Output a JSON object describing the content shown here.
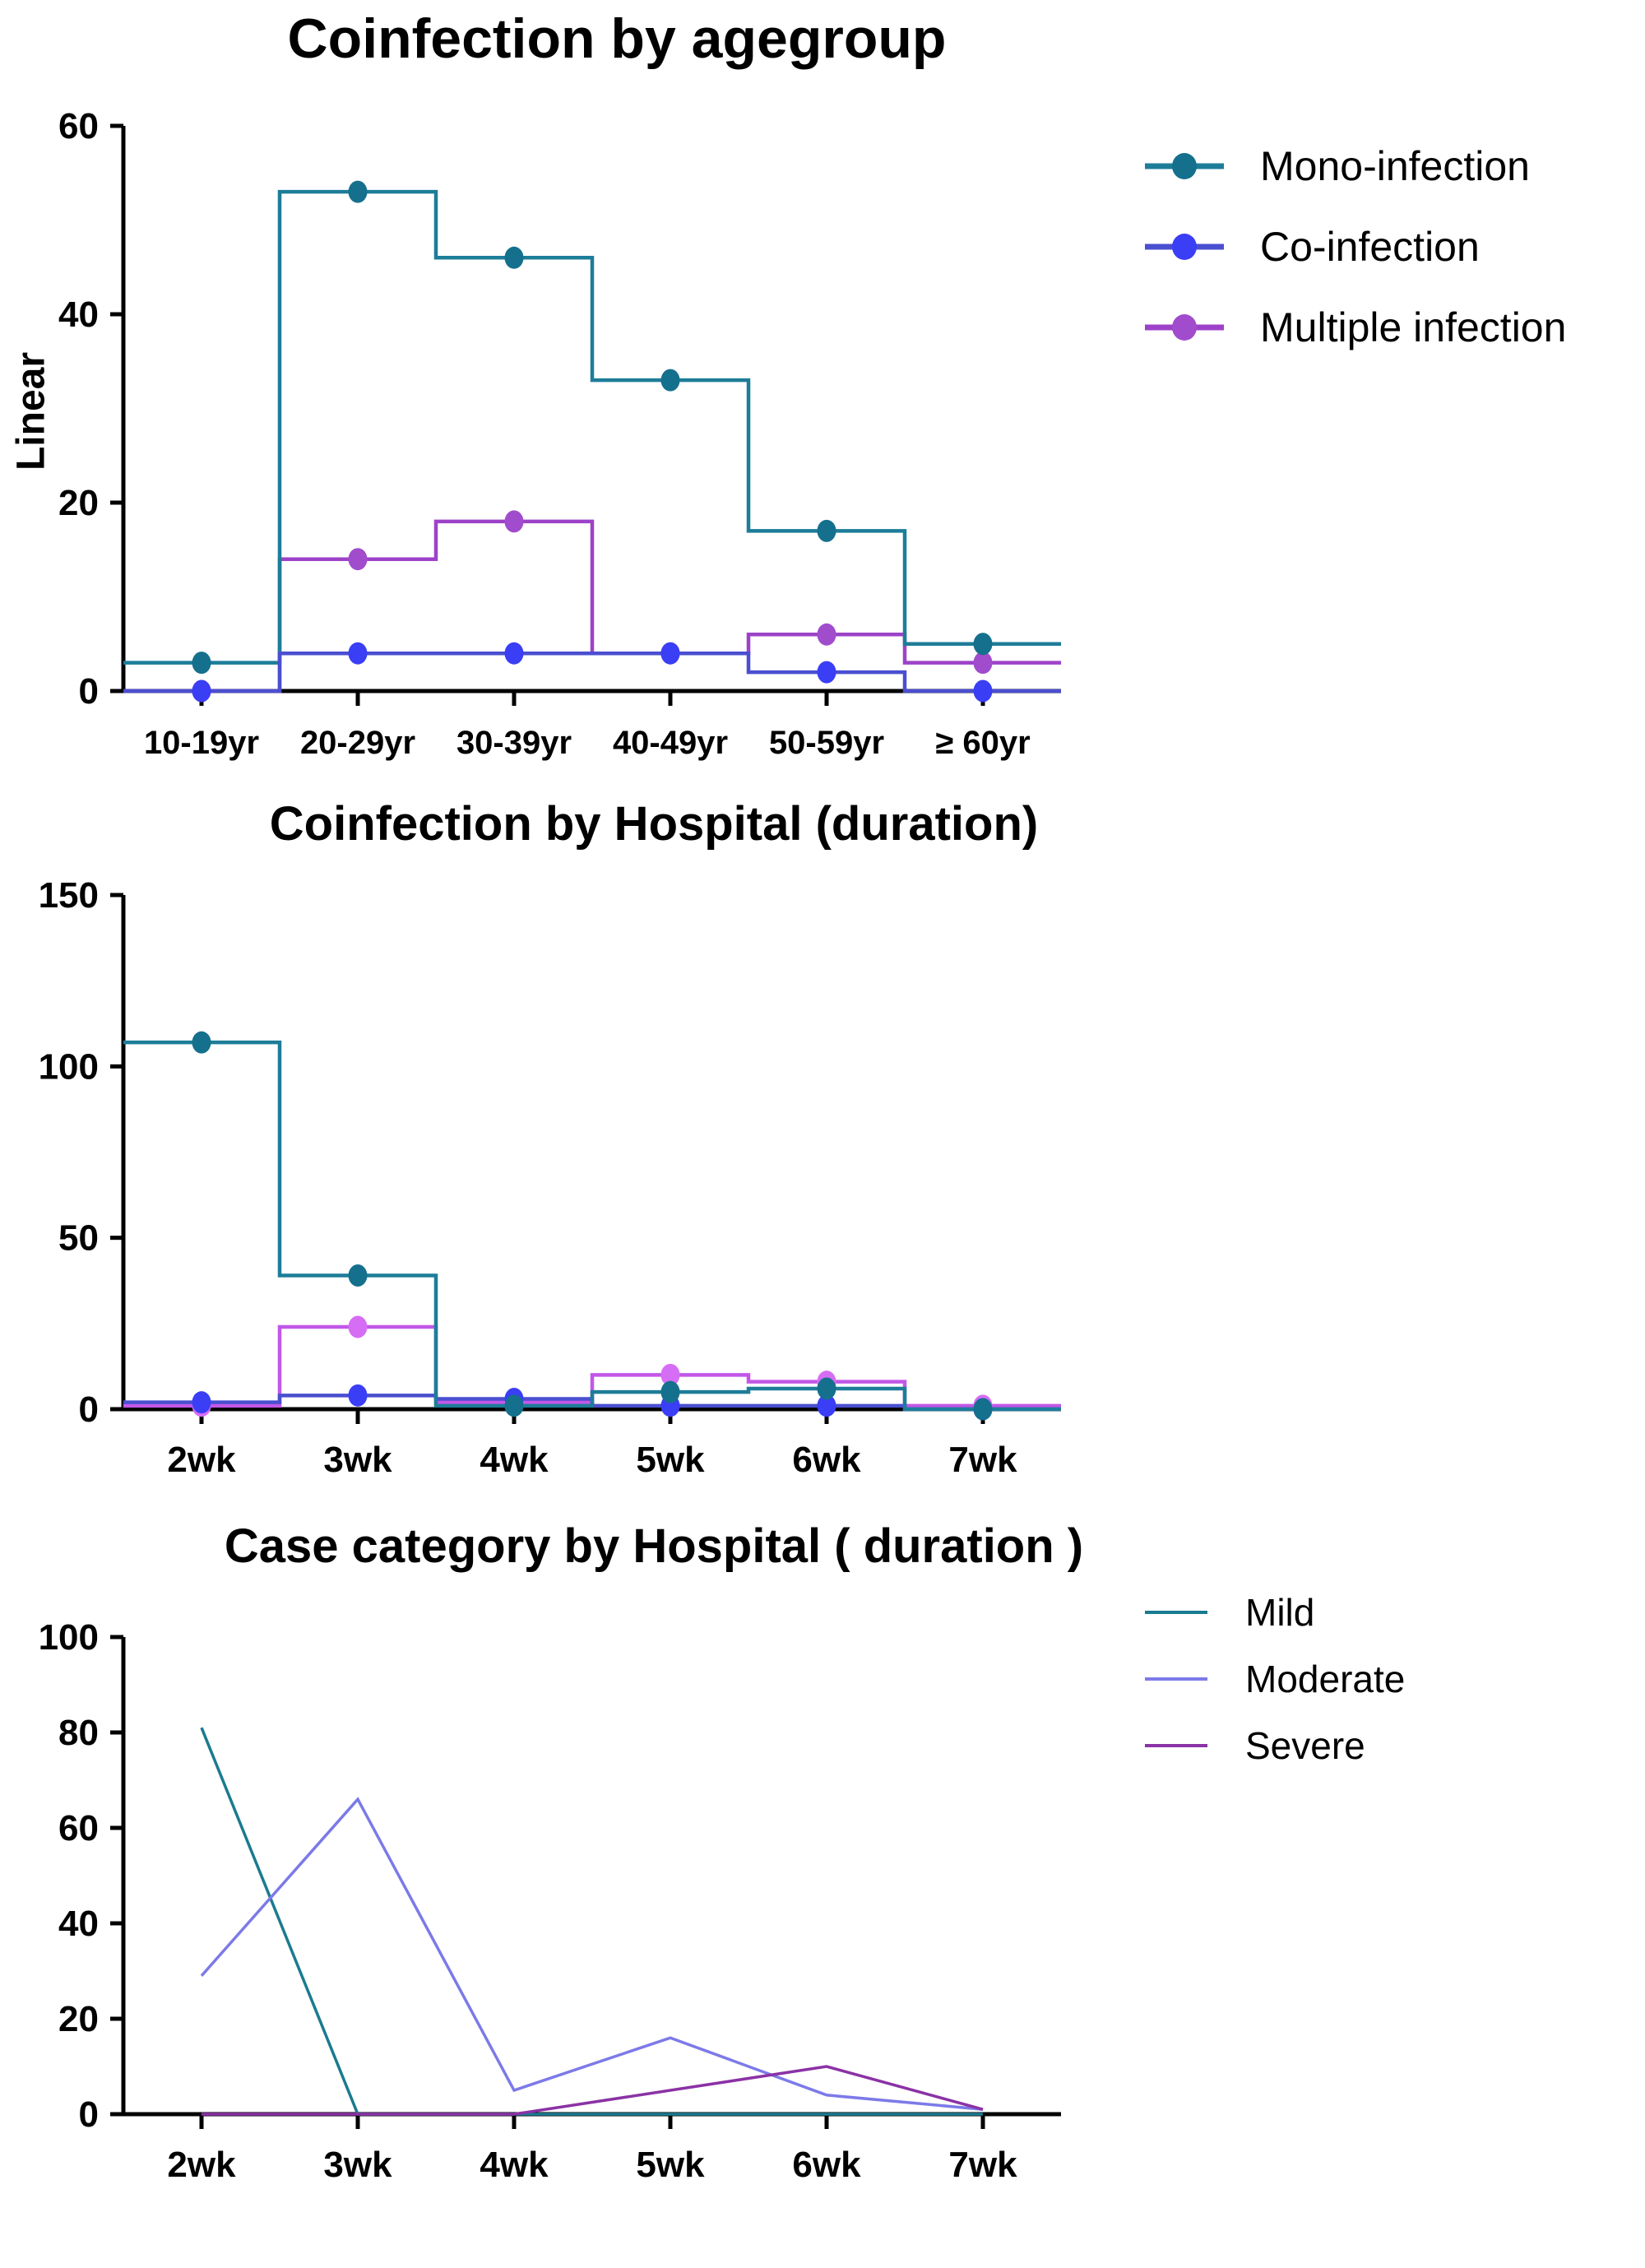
{
  "figure": {
    "background": "#ffffff",
    "text_color": "#000000"
  },
  "chart_data": [
    {
      "id": "coinfection-by-agegroup",
      "type": "step",
      "title": "Coinfection by agegroup",
      "ylabel": "Linear",
      "xlabel": "",
      "categories": [
        "10-19yr",
        "20-29yr",
        "30-39yr",
        "40-49yr",
        "50-59yr",
        "≥ 60yr"
      ],
      "ylim": [
        0,
        60
      ],
      "yticks": [
        0,
        20,
        40,
        60
      ],
      "grid": false,
      "legend_position": "right-top",
      "legend_style": "line-with-marker",
      "series": [
        {
          "name": "Mono-infection",
          "values": [
            3,
            53,
            46,
            33,
            17,
            5
          ],
          "line_color": "#1d7d99",
          "marker_color": "#15708d"
        },
        {
          "name": "Co-infection",
          "values": [
            0,
            4,
            4,
            4,
            2,
            0
          ],
          "line_color": "#4a4fd0",
          "marker_color": "#3a3ef5"
        },
        {
          "name": "Multiple infection",
          "values": [
            0,
            14,
            18,
            4,
            6,
            3
          ],
          "line_color": "#9d42c8",
          "marker_color": "#a04ccc"
        }
      ]
    },
    {
      "id": "coinfection-by-hospital-duration",
      "type": "step",
      "title": "Coinfection by Hospital (duration)",
      "ylabel": "",
      "xlabel": "",
      "categories": [
        "2wk",
        "3wk",
        "4wk",
        "5wk",
        "6wk",
        "7wk"
      ],
      "ylim": [
        0,
        150
      ],
      "yticks": [
        0,
        50,
        100,
        150
      ],
      "grid": false,
      "legend_position": "none",
      "series": [
        {
          "name": "Mono-infection",
          "values": [
            107,
            39,
            1,
            5,
            6,
            0
          ],
          "line_color": "#1d7d99",
          "marker_color": "#15708d"
        },
        {
          "name": "Co-infection",
          "values": [
            2,
            4,
            3,
            1,
            1,
            0
          ],
          "line_color": "#4a4fd0",
          "marker_color": "#3a3ef5"
        },
        {
          "name": "Multiple infection",
          "values": [
            1,
            24,
            2,
            10,
            8,
            1
          ],
          "line_color": "#c257e8",
          "marker_color": "#d66df5"
        }
      ]
    },
    {
      "id": "case-category-by-hospital-duration",
      "type": "line",
      "title": "Case category by Hospital ( duration )",
      "ylabel": "",
      "xlabel": "",
      "categories": [
        "2wk",
        "3wk",
        "4wk",
        "5wk",
        "6wk",
        "7wk"
      ],
      "ylim": [
        0,
        100
      ],
      "yticks": [
        0,
        20,
        40,
        60,
        80,
        100
      ],
      "grid": false,
      "legend_position": "right-top",
      "legend_style": "line-only",
      "series": [
        {
          "name": "Mild",
          "values": [
            81,
            0,
            0,
            0,
            0,
            0
          ],
          "line_color": "#1a7b8f"
        },
        {
          "name": "Moderate",
          "values": [
            29,
            66,
            5,
            16,
            4,
            1
          ],
          "line_color": "#7c7ae8"
        },
        {
          "name": "Severe",
          "values": [
            0,
            0,
            0,
            5,
            10,
            1
          ],
          "line_color": "#8b32a5"
        }
      ]
    }
  ]
}
